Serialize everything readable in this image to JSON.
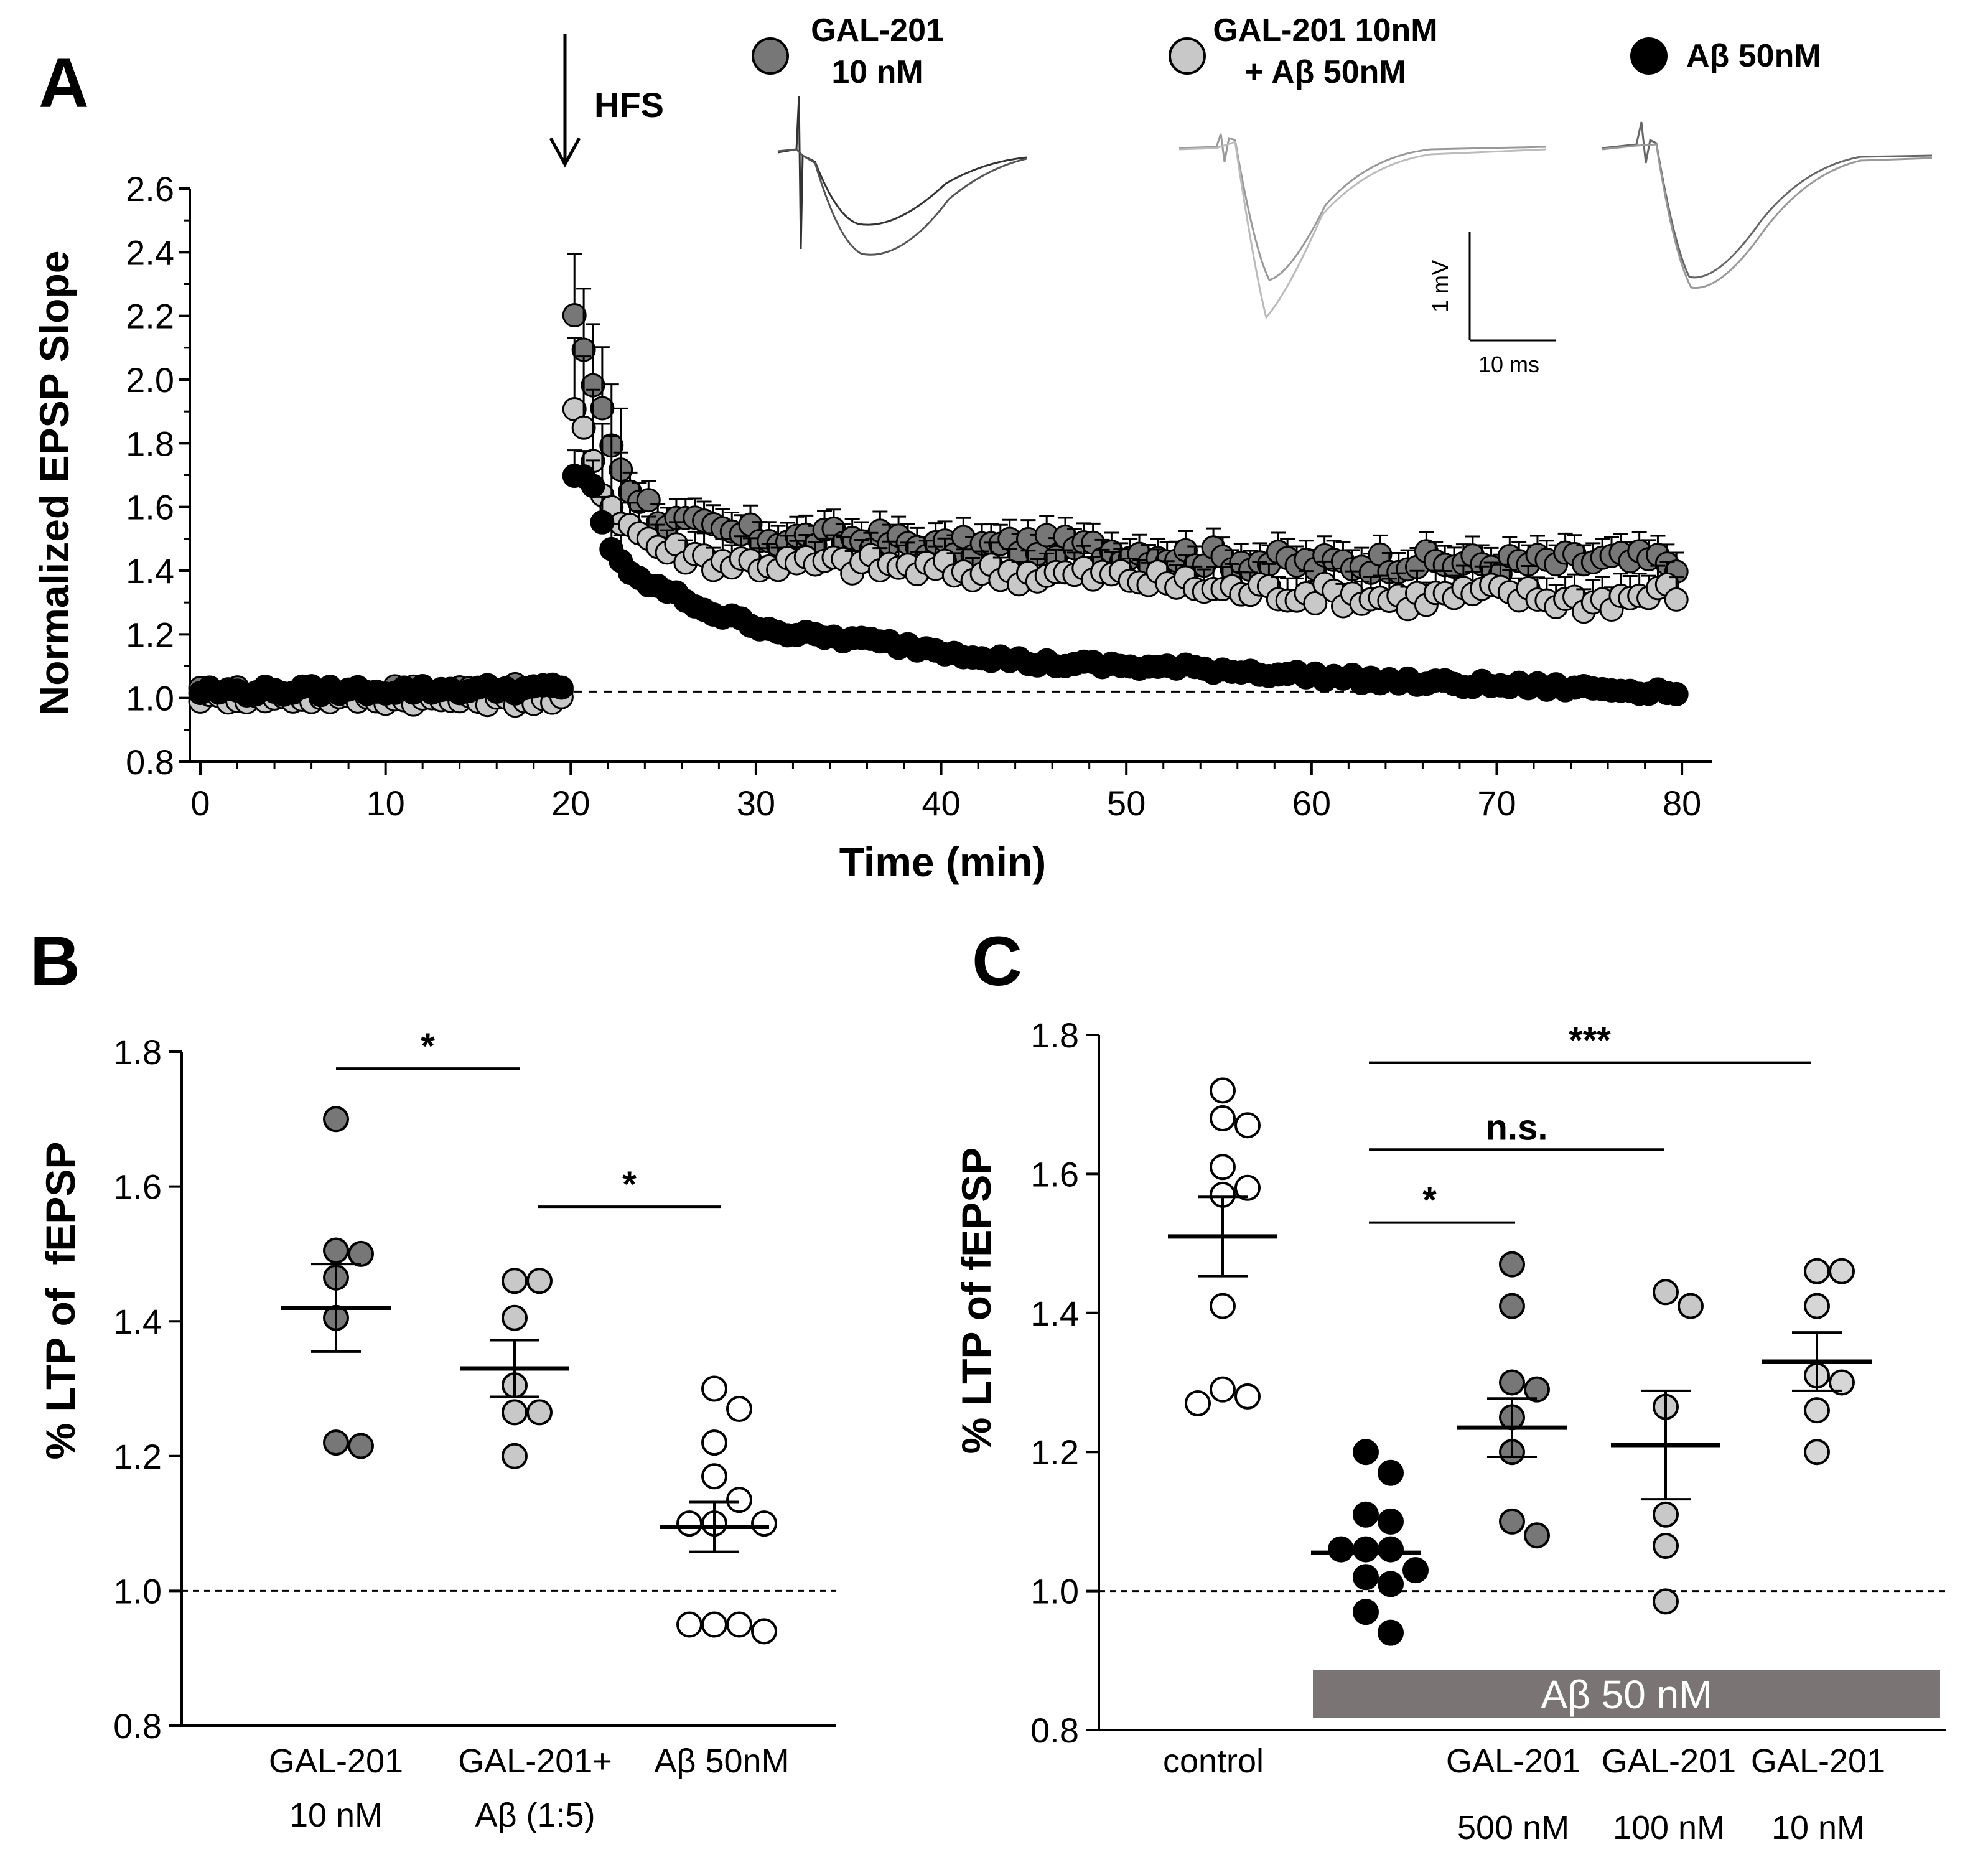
{
  "panels": {
    "a": "A",
    "b": "B",
    "c": "C"
  },
  "colors": {
    "gal": "#777777",
    "gal_ab": "#c8c8c8",
    "ab": "#000000",
    "control": "#ffffff",
    "bar": "#7a7574"
  },
  "chart_data": [
    {
      "id": "A",
      "type": "scatter",
      "title": "",
      "xlabel": "Time (min)",
      "ylabel": "Normalized EPSP Slope",
      "xlim": [
        0,
        80
      ],
      "ylim": [
        0.8,
        2.6
      ],
      "xticks": [
        0,
        10,
        20,
        30,
        40,
        50,
        60,
        70,
        80
      ],
      "yticks": [
        0.8,
        1.0,
        1.2,
        1.4,
        1.6,
        1.8,
        2.0,
        2.2,
        2.4,
        2.6
      ],
      "xtick_labels": [
        "0",
        "10",
        "20",
        "30",
        "40",
        "50",
        "60",
        "70",
        "80"
      ],
      "ytick_labels": [
        "0.8",
        "1.0",
        "1.2",
        "1.4",
        "1.6",
        "1.8",
        "2.0",
        "2.2",
        "2.4",
        "2.6"
      ],
      "baseline": 1.02,
      "hfs_time": 19.5,
      "hfs_label": "HFS",
      "legend": [
        {
          "name_line1": "GAL-201",
          "name_line2": "10 nM",
          "color": "#777777"
        },
        {
          "name_line1": "GAL-201 10nM",
          "name_line2": "+ Aβ 50nM",
          "color": "#c8c8c8"
        },
        {
          "name_line1": "Aβ 50nM",
          "name_line2": "",
          "color": "#000000"
        }
      ],
      "scale_bar": {
        "v_label": "1 mV",
        "h_label": "10 ms"
      },
      "series": [
        {
          "name": "GAL-201 10 nM",
          "color": "#777777",
          "anchors_t": [
            0,
            19.5,
            20.2,
            21,
            22,
            23,
            25,
            28,
            32,
            36,
            40,
            45,
            50,
            55,
            60,
            65,
            70,
            75,
            80
          ],
          "anchors_v": [
            1.02,
            1.03,
            2.21,
            2.03,
            1.83,
            1.68,
            1.56,
            1.52,
            1.5,
            1.5,
            1.47,
            1.48,
            1.46,
            1.44,
            1.42,
            1.43,
            1.42,
            1.43,
            1.43
          ],
          "err": 0.06
        },
        {
          "name": "GAL-201 10nM + Aβ 50nM",
          "color": "#c8c8c8",
          "anchors_t": [
            0,
            19.5,
            20.2,
            21,
            22,
            23,
            25,
            28,
            32,
            36,
            40,
            45,
            50,
            55,
            60,
            65,
            70,
            75,
            80
          ],
          "anchors_v": [
            1.0,
            0.99,
            1.9,
            1.78,
            1.62,
            1.55,
            1.47,
            1.43,
            1.42,
            1.42,
            1.4,
            1.39,
            1.38,
            1.34,
            1.33,
            1.31,
            1.33,
            1.3,
            1.34
          ],
          "err": 0.07
        },
        {
          "name": "Aβ 50nM",
          "color": "#000000",
          "anchors_t": [
            0,
            19.5,
            20.2,
            21,
            22,
            23,
            25,
            28,
            32,
            36,
            40,
            45,
            50,
            55,
            60,
            65,
            70,
            75,
            80
          ],
          "anchors_v": [
            1.02,
            1.03,
            1.69,
            1.71,
            1.49,
            1.39,
            1.34,
            1.26,
            1.2,
            1.18,
            1.15,
            1.11,
            1.1,
            1.09,
            1.07,
            1.05,
            1.04,
            1.03,
            1.02
          ],
          "err": 0.025
        }
      ]
    },
    {
      "id": "B",
      "type": "scatter",
      "ylabel": "% LTP of  fEPSP",
      "ylim": [
        0.8,
        1.8
      ],
      "yticks": [
        0.8,
        1.0,
        1.2,
        1.4,
        1.6,
        1.8
      ],
      "ytick_labels": [
        "0.8",
        "1.0",
        "1.2",
        "1.4",
        "1.6",
        "1.8"
      ],
      "baseline": 1.0,
      "groups": [
        {
          "label_line1": "GAL-201",
          "label_line2": "10 nM",
          "color": "#777777",
          "mean": 1.42,
          "sem": 0.065,
          "points": [
            1.7,
            1.505,
            1.5,
            1.465,
            1.405,
            1.22,
            1.215
          ]
        },
        {
          "label_line1": "GAL-201+",
          "label_line2": "Aβ (1:5)",
          "color": "#c8c8c8",
          "mean": 1.33,
          "sem": 0.042,
          "points": [
            1.46,
            1.46,
            1.405,
            1.305,
            1.265,
            1.265,
            1.2
          ]
        },
        {
          "label_line1": "Aβ 50nM",
          "label_line2": "",
          "color": "#ffffff",
          "mean": 1.095,
          "sem": 0.037,
          "points": [
            1.3,
            1.27,
            1.22,
            1.17,
            1.135,
            1.1,
            1.1,
            1.1,
            0.95,
            0.95,
            0.95,
            0.94
          ]
        }
      ],
      "significance": [
        {
          "from": 0,
          "to": 1,
          "y": 1.775,
          "label": "*"
        },
        {
          "from": 1,
          "to": 2,
          "y": 1.57,
          "label": "*"
        }
      ]
    },
    {
      "id": "C",
      "type": "scatter",
      "ylabel": "% LTP of fEPSP",
      "ylim": [
        0.8,
        1.8
      ],
      "yticks": [
        0.8,
        1.0,
        1.2,
        1.4,
        1.6,
        1.8
      ],
      "ytick_labels": [
        "0.8",
        "1.0",
        "1.2",
        "1.4",
        "1.6",
        "1.8"
      ],
      "baseline": 1.0,
      "bar_label": "Aβ 50 nM",
      "groups": [
        {
          "label_line1": "control",
          "label_line2": "",
          "color": "#ffffff",
          "mean": 1.51,
          "sem": 0.057,
          "points": [
            1.72,
            1.68,
            1.67,
            1.61,
            1.57,
            1.58,
            1.41,
            1.29,
            1.28,
            1.27
          ]
        },
        {
          "label_line1": "",
          "label_line2": "",
          "color": "#000000",
          "mean": 1.055,
          "sem": 0.0,
          "points": [
            1.2,
            1.17,
            1.11,
            1.1,
            1.06,
            1.06,
            1.06,
            1.03,
            1.02,
            1.01,
            0.97,
            0.94
          ]
        },
        {
          "label_line1": "GAL-201",
          "label_line2": "500 nM",
          "color": "#777777",
          "mean": 1.235,
          "sem": 0.042,
          "points": [
            1.47,
            1.41,
            1.3,
            1.29,
            1.25,
            1.2,
            1.1,
            1.08
          ]
        },
        {
          "label_line1": "GAL-201",
          "label_line2": "100 nM",
          "color": "#c8c8c8",
          "mean": 1.21,
          "sem": 0.078,
          "points": [
            1.43,
            1.41,
            1.265,
            1.11,
            1.065,
            0.985
          ]
        },
        {
          "label_line1": "GAL-201",
          "label_line2": "10 nM",
          "color": "#d6d6d6",
          "mean": 1.33,
          "sem": 0.042,
          "points": [
            1.46,
            1.46,
            1.41,
            1.31,
            1.3,
            1.26,
            1.2
          ]
        }
      ],
      "significance": [
        {
          "from": 1,
          "to": 2,
          "y": 1.53,
          "label": "*"
        },
        {
          "from": 1,
          "to": 3,
          "y": 1.635,
          "label": "n.s."
        },
        {
          "from": 1,
          "to": 4,
          "y": 1.76,
          "label": "***"
        }
      ]
    }
  ]
}
